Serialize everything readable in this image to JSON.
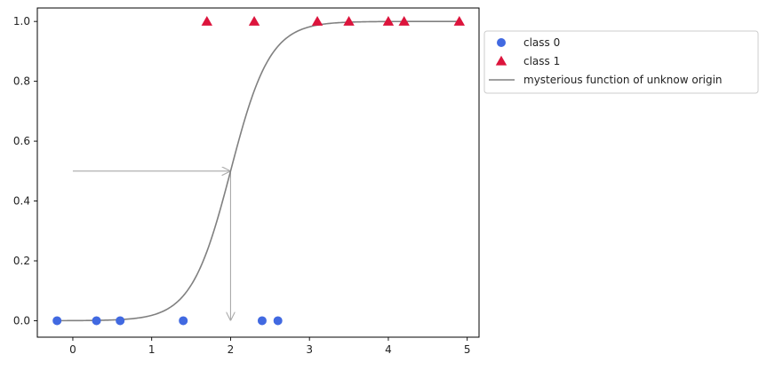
{
  "chart_data": {
    "type": "scatter",
    "title": "",
    "xlabel": "",
    "ylabel": "",
    "xlim": [
      -0.45,
      5.15
    ],
    "ylim": [
      -0.055,
      1.045
    ],
    "xticks": [
      0,
      1,
      2,
      3,
      4,
      5
    ],
    "xtick_labels": [
      "0",
      "1",
      "2",
      "3",
      "4",
      "5"
    ],
    "yticks": [
      0.0,
      0.2,
      0.4,
      0.6,
      0.8,
      1.0
    ],
    "ytick_labels": [
      "0.0",
      "0.2",
      "0.4",
      "0.6",
      "0.8",
      "1.0"
    ],
    "grid": false,
    "legend_position": "outside-right-top",
    "series": [
      {
        "name": "class 0",
        "kind": "scatter",
        "marker": "circle",
        "color": "#4169e1",
        "points": [
          {
            "x": -0.2,
            "y": 0
          },
          {
            "x": 0.3,
            "y": 0
          },
          {
            "x": 0.6,
            "y": 0
          },
          {
            "x": 1.4,
            "y": 0
          },
          {
            "x": 2.4,
            "y": 0
          },
          {
            "x": 2.6,
            "y": 0
          }
        ]
      },
      {
        "name": "class 1",
        "kind": "scatter",
        "marker": "triangle",
        "color": "#dc143c",
        "points": [
          {
            "x": 1.7,
            "y": 1
          },
          {
            "x": 2.3,
            "y": 1
          },
          {
            "x": 3.1,
            "y": 1
          },
          {
            "x": 3.5,
            "y": 1
          },
          {
            "x": 4.0,
            "y": 1
          },
          {
            "x": 4.2,
            "y": 1
          },
          {
            "x": 4.9,
            "y": 1
          }
        ]
      },
      {
        "name": "mysterious function of unknow origin",
        "kind": "line",
        "color": "#808080",
        "function": "logistic",
        "midpoint": 2,
        "steepness": 4,
        "x_range": [
          -0.2,
          4.9
        ]
      }
    ],
    "annotations": [
      {
        "type": "arrow",
        "color": "#a9a9a9",
        "from": {
          "x": 0,
          "y": 0.5
        },
        "to": {
          "x": 2,
          "y": 0.5
        }
      },
      {
        "type": "arrow",
        "color": "#a9a9a9",
        "from": {
          "x": 2,
          "y": 0.5
        },
        "to": {
          "x": 2,
          "y": 0
        }
      }
    ]
  }
}
